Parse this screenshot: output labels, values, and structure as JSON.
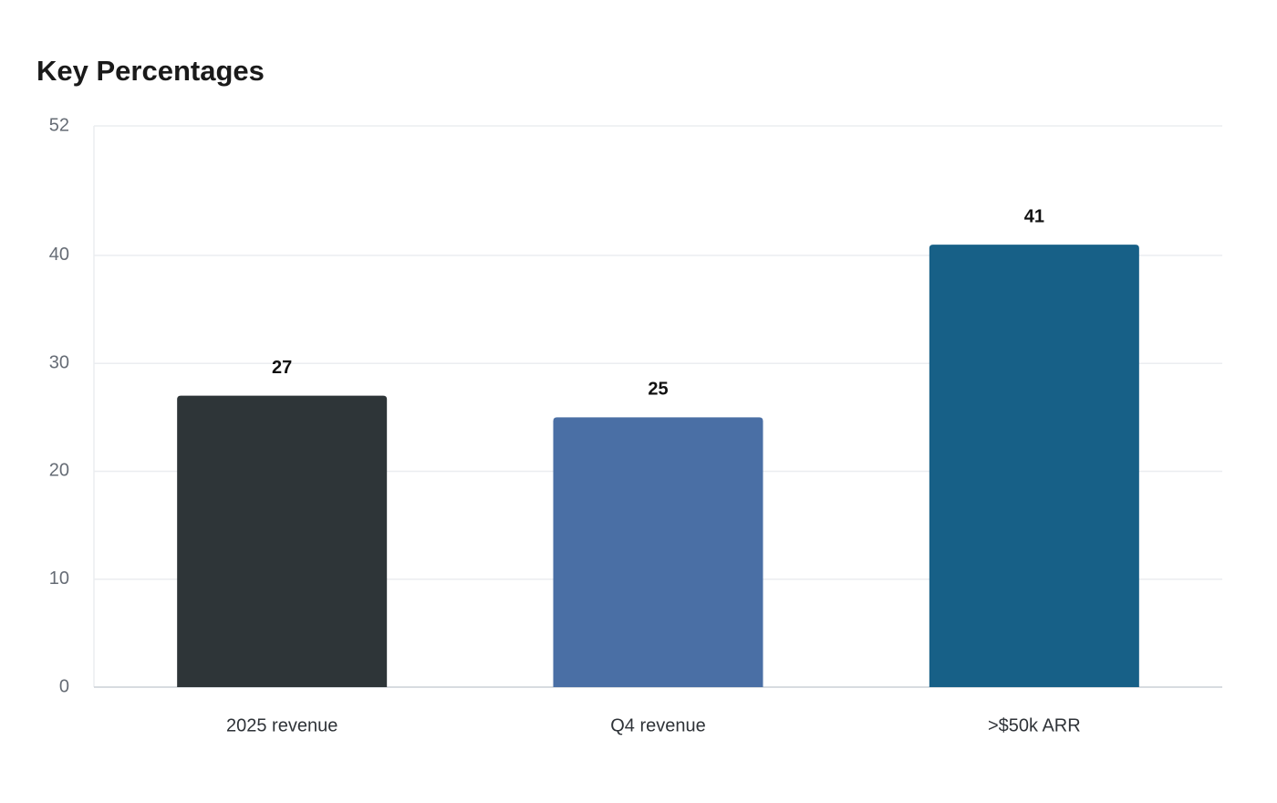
{
  "chart_data": {
    "type": "bar",
    "title": "Key Percentages",
    "categories": [
      "2025 revenue",
      "Q4 revenue",
      ">$50k ARR"
    ],
    "values": [
      27,
      25,
      41
    ],
    "colors": [
      "#2e3538",
      "#4a6fa5",
      "#176087"
    ],
    "ylim": [
      0,
      52
    ],
    "yticks": [
      0,
      10,
      20,
      30,
      40,
      52
    ],
    "grid": true
  }
}
